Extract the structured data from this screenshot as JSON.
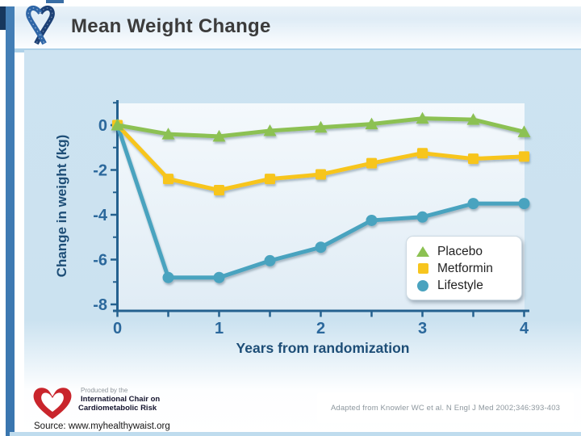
{
  "slide": {
    "title": "Mean Weight Change",
    "source_label": "Source: www.myhealthywaist.org",
    "citation": "Adapted from Knowler WC et al. N Engl J Med 2002;346:393-403",
    "producer": {
      "line1": "Produced by the",
      "line2": "International Chair on",
      "line3": "Cardiometabolic Risk"
    }
  },
  "chart_data": {
    "type": "line",
    "title": "",
    "xlabel": "Years from randomization",
    "ylabel": "Change in weight (kg)",
    "x": [
      0,
      0.5,
      1,
      1.5,
      2,
      2.5,
      3,
      3.5,
      4
    ],
    "series": [
      {
        "name": "Placebo",
        "marker": "triangle",
        "color": "#8cc152",
        "values": [
          0,
          -0.4,
          -0.5,
          -0.25,
          -0.1,
          0.05,
          0.3,
          0.25,
          -0.3
        ]
      },
      {
        "name": "Metformin",
        "marker": "square",
        "color": "#f7c51e",
        "values": [
          0,
          -2.4,
          -2.9,
          -2.4,
          -2.2,
          -1.7,
          -1.25,
          -1.5,
          -1.4
        ]
      },
      {
        "name": "Lifestyle",
        "marker": "circle",
        "color": "#4aa3bf",
        "values": [
          0,
          -6.8,
          -6.8,
          -6.05,
          -5.45,
          -4.25,
          -4.1,
          -3.5,
          -3.5
        ]
      }
    ],
    "xticks": [
      0,
      1,
      2,
      3,
      4
    ],
    "yticks": [
      0,
      -2,
      -4,
      -6,
      -8
    ],
    "xlim": [
      0,
      4
    ],
    "ylim": [
      -8,
      1
    ],
    "grid": false,
    "legend_position": "lower right"
  },
  "colors": {
    "axis": "#24618f",
    "tick_text": "#2b689c",
    "axis_title_text": "#1e4e77",
    "title_text": "#3b3b3b",
    "left_bar": "#3a76af",
    "left_navy": "#17375d",
    "separator": "#aed1e8",
    "content_bg": "#cde3f1",
    "legend_bg": "#ffffff",
    "heart_logo_red": "#c9252c",
    "ribbon_blue": "#2f66a7"
  }
}
